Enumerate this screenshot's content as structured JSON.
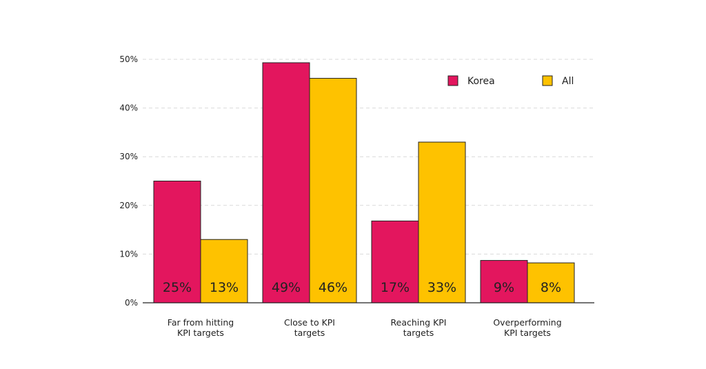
{
  "colors": {
    "korea": "#E3165E",
    "all": "#FEC200"
  },
  "legend": {
    "items": [
      "Korea",
      "All"
    ],
    "placement": "top-right"
  },
  "chart_data": {
    "type": "bar",
    "title": "",
    "xlabel": "",
    "ylabel": "",
    "ylim": [
      0,
      50
    ],
    "y_ticks": [
      "0%",
      "10%",
      "20%",
      "30%",
      "40%",
      "50%"
    ],
    "grid": true,
    "categories": [
      [
        "Far from hitting",
        "KPI targets"
      ],
      [
        "Close to KPI",
        "targets"
      ],
      [
        "Reaching KPI",
        "targets"
      ],
      [
        "Overperforming",
        "KPI targets"
      ]
    ],
    "series": [
      {
        "name": "Korea",
        "values": [
          25,
          49.3,
          16.8,
          8.7
        ],
        "labels": [
          "25%",
          "49%",
          "17%",
          "9%"
        ],
        "color": "#E3165E"
      },
      {
        "name": "All",
        "values": [
          13,
          46.1,
          33,
          8.2
        ],
        "labels": [
          "13%",
          "46%",
          "33%",
          "8%"
        ],
        "color": "#FEC200"
      }
    ]
  }
}
